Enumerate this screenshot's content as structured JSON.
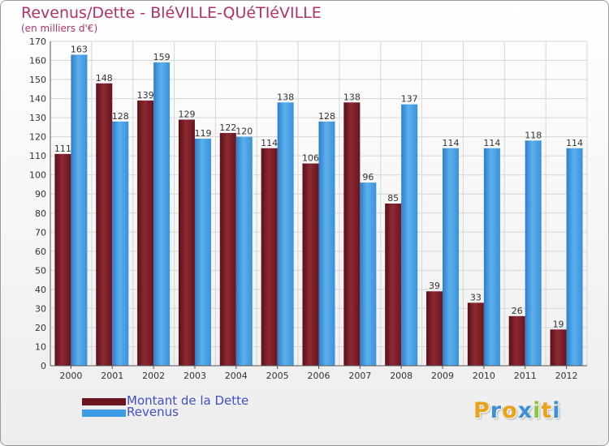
{
  "title": "Revenus/Dette - BléVILLE-QUéTIéVILLE",
  "subtitle": "(en milliers d'€)",
  "colors": {
    "debt": "#7a1c24",
    "revenue": "#3d9be3",
    "text": "#b0306c",
    "legend_text": "#4050c8"
  },
  "chart_data": {
    "type": "bar",
    "title": "Revenus/Dette - BléVILLE-QUéTIéVILLE",
    "ylabel": "(en milliers d'€)",
    "xlabel": "",
    "categories": [
      "2000",
      "2001",
      "2002",
      "2003",
      "2004",
      "2005",
      "2006",
      "2007",
      "2008",
      "2009",
      "2010",
      "2011",
      "2012"
    ],
    "series": [
      {
        "name": "Montant de la Dette",
        "color": "#7a1c24",
        "values": [
          111,
          148,
          139,
          129,
          122,
          114,
          106,
          138,
          85,
          39,
          33,
          26,
          19
        ]
      },
      {
        "name": "Revenus",
        "color": "#3d9be3",
        "values": [
          163,
          128,
          159,
          119,
          120,
          138,
          128,
          96,
          137,
          114,
          114,
          118,
          114
        ]
      }
    ],
    "ylim": [
      0,
      170
    ],
    "ytick_step": 10,
    "grid": true,
    "legend_position": "bottom-left"
  },
  "legend": [
    {
      "label": "Montant de la Dette",
      "color": "#7a1c24"
    },
    {
      "label": "Revenus",
      "color": "#3d9be3"
    }
  ],
  "logo": {
    "text": "Proxiti",
    "letters": [
      "P",
      "r",
      "o",
      "x",
      "i",
      "t",
      "i"
    ],
    "colors": [
      "#e8a21c",
      "#3d8fd6",
      "#e8a21c",
      "#3d8fd6",
      "#8cc63f",
      "#e8a21c",
      "#3d8fd6"
    ]
  }
}
